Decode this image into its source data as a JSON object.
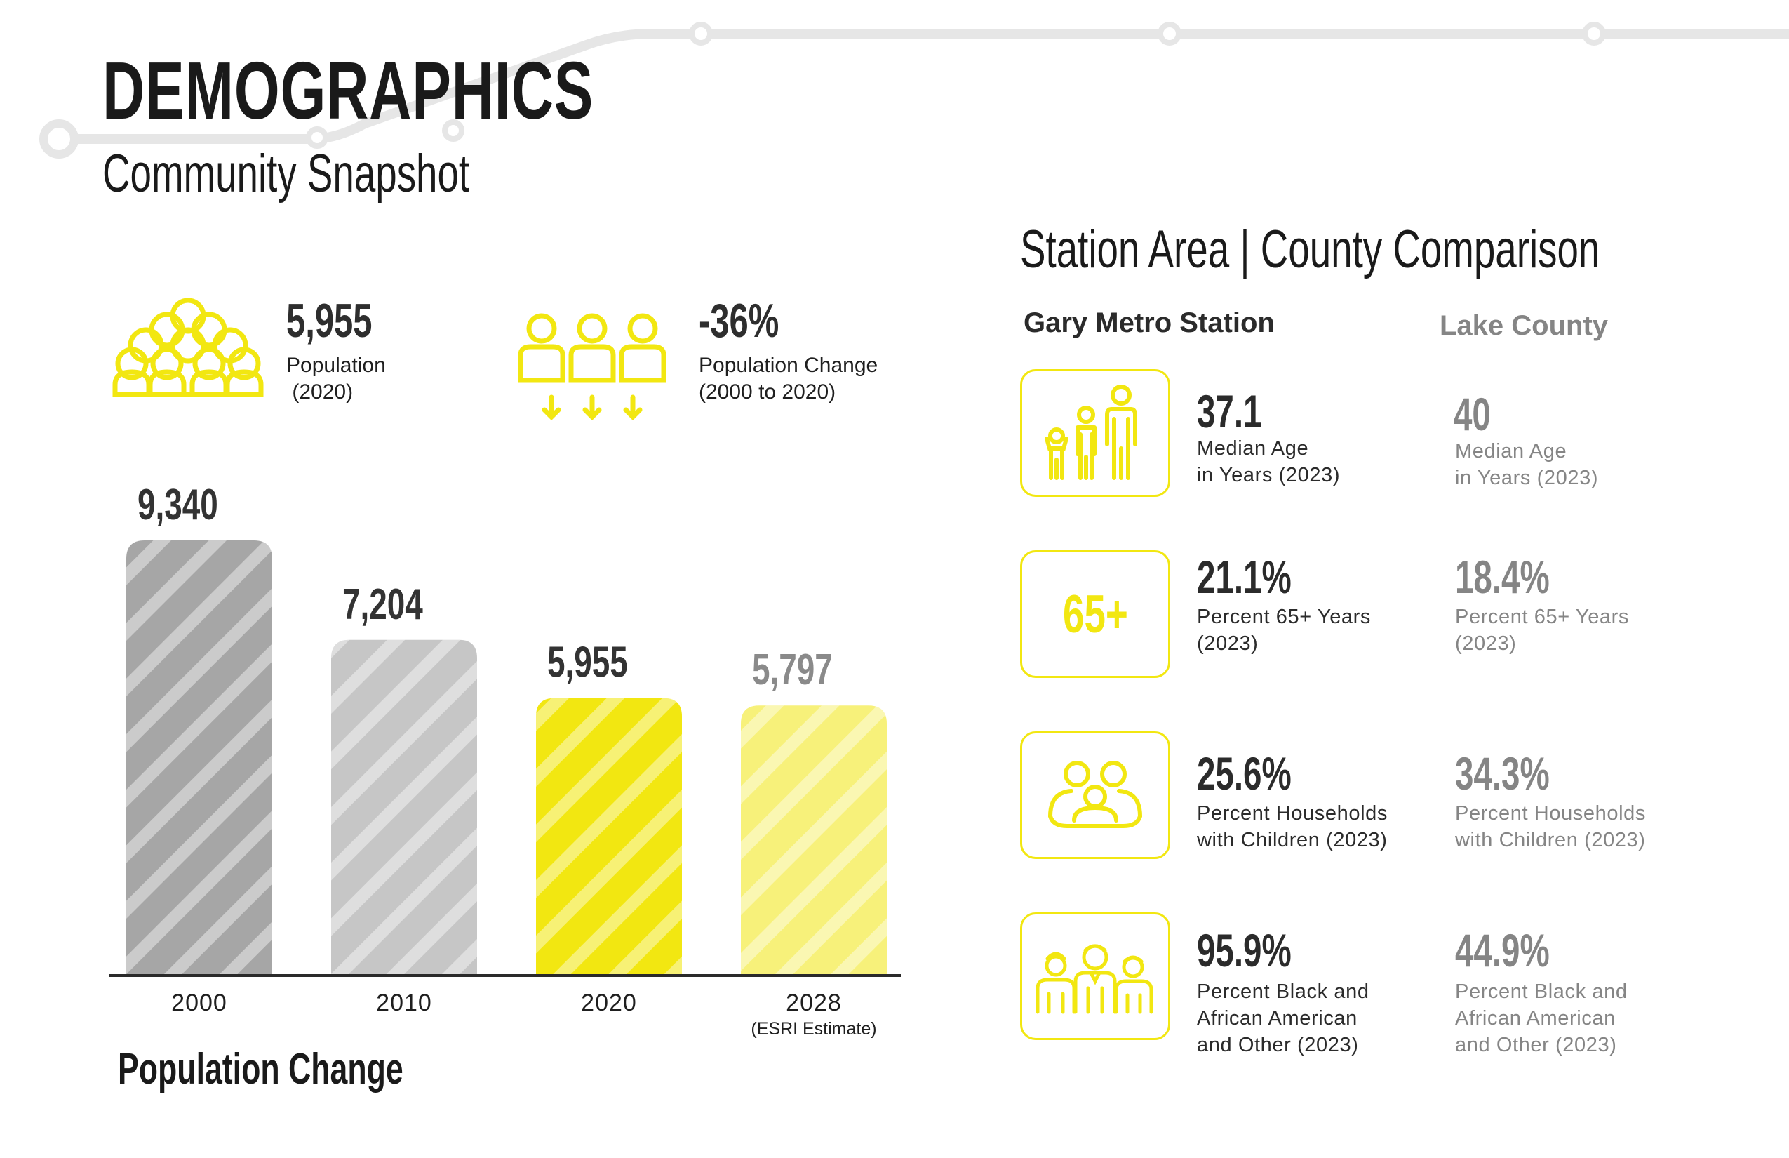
{
  "header": {
    "title": "DEMOGRAPHICS",
    "subtitle": "Community Snapshot"
  },
  "summary": {
    "population": {
      "value": "5,955",
      "label": "Population\n (2020)",
      "icon": "crowd-icon"
    },
    "change": {
      "value": "-36%",
      "label": "Population Change\n(2000 to 2020)",
      "icon": "population-decline-icon"
    }
  },
  "colors": {
    "accent_yellow": "#f2e711",
    "light_yellow": "#f7f17a",
    "dark_grey": "#a6a6a6",
    "light_grey": "#c6c6c6",
    "rail": "#e6e6e6"
  },
  "chart_data": {
    "type": "bar",
    "categories": [
      "2000",
      "2010",
      "2020",
      "2028"
    ],
    "category_notes": [
      "",
      "",
      "",
      "(ESRI Estimate)"
    ],
    "values": [
      9340,
      7204,
      5955,
      5797
    ],
    "value_labels": [
      "9,340",
      "7,204",
      "5,955",
      "5,797"
    ],
    "bar_colors": [
      "#a6a6a6",
      "#c6c6c6",
      "#f2e711",
      "#f7f17a"
    ],
    "value_label_colors": [
      "#333333",
      "#333333",
      "#333333",
      "#8a8a8a"
    ],
    "title": "Population Change",
    "xlabel": "",
    "ylabel": "",
    "grid": false
  },
  "comparison": {
    "title": "Station Area |  County Comparison",
    "station_heading": "Gary Metro Station",
    "county_heading": "Lake County",
    "rows": [
      {
        "icon": "family-ages-icon",
        "station_value": "37.1",
        "station_label": "Median Age\nin Years (2023)",
        "county_value": "40",
        "county_label": "Median Age\nin Years (2023)"
      },
      {
        "icon": "sixty-five-plus-icon",
        "icon_text": "65+",
        "station_value": "21.1%",
        "station_label": "Percent 65+ Years\n(2023)",
        "county_value": "18.4%",
        "county_label": "Percent 65+ Years\n(2023)"
      },
      {
        "icon": "household-children-icon",
        "station_value": "25.6%",
        "station_label": "Percent Households\nwith Children (2023)",
        "county_value": "34.3%",
        "county_label": "Percent Households\nwith Children (2023)"
      },
      {
        "icon": "diverse-people-icon",
        "station_value": "95.9%",
        "station_label": "Percent Black and\nAfrican American\nand Other (2023)",
        "county_value": "44.9%",
        "county_label": "Percent Black and\nAfrican American\nand Other (2023)"
      }
    ]
  }
}
